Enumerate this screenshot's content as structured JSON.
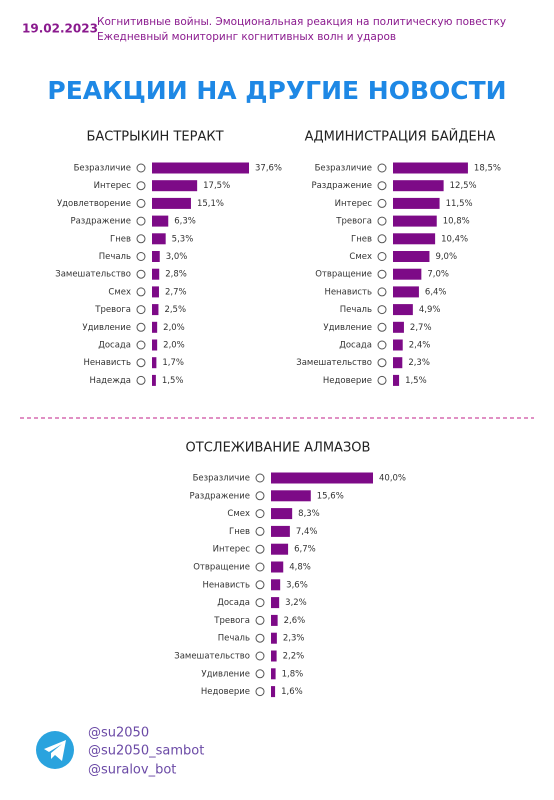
{
  "header": {
    "date": "19.02.2023",
    "line1": "Когнитивные войны. Эмоциональная реакция на политическую повестку",
    "line2": "Ежедневный мониторинг когнитивных волн и ударов",
    "title": "РЕАКЦИИ НА ДРУГИЕ НОВОСТИ"
  },
  "chart_data": [
    {
      "type": "bar",
      "orientation": "horizontal",
      "title": "БАСТРЫКИН ТЕРАКТ",
      "color": "#7d0a87",
      "categories": [
        "Безразличие",
        "Интерес",
        "Удовлетворение",
        "Раздражение",
        "Гнев",
        "Печаль",
        "Замешательство",
        "Смех",
        "Тревога",
        "Удивление",
        "Досада",
        "Ненависть",
        "Надежда"
      ],
      "values": [
        37.6,
        17.5,
        15.1,
        6.3,
        5.3,
        3.0,
        2.8,
        2.7,
        2.5,
        2.0,
        2.0,
        1.7,
        1.5
      ],
      "value_labels": [
        "37,6%",
        "17,5%",
        "15,1%",
        "6,3%",
        "5,3%",
        "3,0%",
        "2,8%",
        "2,7%",
        "2,5%",
        "2,0%",
        "2,0%",
        "1,7%",
        "1,5%"
      ]
    },
    {
      "type": "bar",
      "orientation": "horizontal",
      "title": "АДМИНИСТРАЦИЯ БАЙДЕНА",
      "color": "#7d0a87",
      "categories": [
        "Безразличие",
        "Раздражение",
        "Интерес",
        "Тревога",
        "Гнев",
        "Смех",
        "Отвращение",
        "Ненависть",
        "Печаль",
        "Удивление",
        "Досада",
        "Замешательство",
        "Недоверие"
      ],
      "values": [
        18.5,
        12.5,
        11.5,
        10.8,
        10.4,
        9.0,
        7.0,
        6.4,
        4.9,
        2.7,
        2.4,
        2.3,
        1.5
      ],
      "value_labels": [
        "18,5%",
        "12,5%",
        "11,5%",
        "10,8%",
        "10,4%",
        "9,0%",
        "7,0%",
        "6,4%",
        "4,9%",
        "2,7%",
        "2,4%",
        "2,3%",
        "1,5%"
      ]
    },
    {
      "type": "bar",
      "orientation": "horizontal",
      "title": "ОТСЛЕЖИВАНИЕ АЛМАЗОВ",
      "color": "#7d0a87",
      "categories": [
        "Безразличие",
        "Раздражение",
        "Смех",
        "Гнев",
        "Интерес",
        "Отвращение",
        "Ненависть",
        "Досада",
        "Тревога",
        "Печаль",
        "Замешательство",
        "Удивление",
        "Недоверие"
      ],
      "values": [
        40.0,
        15.6,
        8.3,
        7.4,
        6.7,
        4.8,
        3.6,
        3.2,
        2.6,
        2.3,
        2.2,
        1.8,
        1.6
      ],
      "value_labels": [
        "40,0%",
        "15,6%",
        "8,3%",
        "7,4%",
        "6,7%",
        "4,8%",
        "3,6%",
        "3,2%",
        "2,6%",
        "2,3%",
        "2,2%",
        "1,8%",
        "1,6%"
      ]
    }
  ],
  "footer": {
    "links": [
      "@su2050",
      "@su2050_sambot",
      "@suralov_bot"
    ]
  }
}
